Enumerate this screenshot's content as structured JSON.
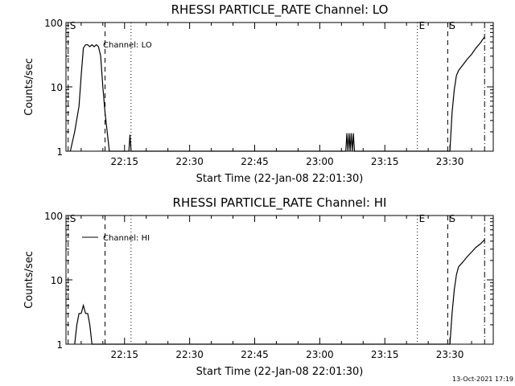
{
  "chart_data": [
    {
      "type": "line",
      "title": "RHESSI PARTICLE_RATE Channel: LO",
      "xlabel": "Start Time (22-Jan-08 22:01:30)",
      "ylabel": "Counts/sec",
      "yscale": "log",
      "ylim": [
        1,
        100
      ],
      "xlim": [
        "22:01:30",
        "23:40:00"
      ],
      "ytick_labels": [
        "1",
        "10",
        "100"
      ],
      "xtick_labels": [
        "22:15",
        "22:30",
        "22:45",
        "23:00",
        "23:15",
        "23:30"
      ],
      "legend": {
        "entry": "Channel: LO",
        "marker": "none",
        "placement": "top-left"
      },
      "event_markers": [
        {
          "time": "22:02:00",
          "style": "dashed",
          "label": "S"
        },
        {
          "time": "22:10:30",
          "style": "dashed",
          "label": ""
        },
        {
          "time": "22:16:30",
          "style": "dotted",
          "label": ""
        },
        {
          "time": "23:22:30",
          "style": "dotted",
          "label": "E"
        },
        {
          "time": "23:29:30",
          "style": "dashed",
          "label": "S"
        },
        {
          "time": "23:38:00",
          "style": "dashdot",
          "label": ""
        }
      ],
      "series": [
        {
          "x": [
            "22:02:30",
            "22:03:30",
            "22:04:30",
            "22:05:00",
            "22:05:30",
            "22:06:00",
            "22:06:30",
            "22:07:00",
            "22:07:30",
            "22:08:00",
            "22:08:30",
            "22:09:00",
            "22:09:30",
            "22:10:00",
            "22:10:30",
            "22:11:00",
            "22:11:30",
            "22:16:00",
            "22:16:15",
            "22:16:30",
            "23:06:00",
            "23:06:15",
            "23:06:30",
            "23:06:45",
            "23:07:00",
            "23:07:15",
            "23:07:30",
            "23:07:45",
            "23:08:00",
            "23:30:00",
            "23:30:30",
            "23:31:00",
            "23:31:30",
            "23:32:00",
            "23:33:00",
            "23:34:00",
            "23:35:00",
            "23:36:00",
            "23:37:00",
            "23:38:00"
          ],
          "y": [
            1,
            2,
            5,
            15,
            40,
            45,
            45,
            42,
            45,
            42,
            45,
            42,
            30,
            10,
            4,
            2,
            1,
            1,
            1.8,
            1,
            1,
            1.9,
            1,
            1.9,
            1,
            1.9,
            1,
            1.9,
            1,
            1,
            4,
            9,
            15,
            18,
            22,
            27,
            32,
            40,
            48,
            60
          ]
        }
      ]
    },
    {
      "type": "line",
      "title": "RHESSI PARTICLE_RATE Channel: HI",
      "xlabel": "Start Time (22-Jan-08 22:01:30)",
      "ylabel": "Counts/sec",
      "yscale": "log",
      "ylim": [
        1,
        100
      ],
      "xlim": [
        "22:01:30",
        "23:40:00"
      ],
      "ytick_labels": [
        "1",
        "10",
        "100"
      ],
      "xtick_labels": [
        "22:15",
        "22:30",
        "22:45",
        "23:00",
        "23:15",
        "23:30"
      ],
      "legend": {
        "entry": "Channel: HI",
        "marker": "line",
        "placement": "top-left"
      },
      "event_markers": [
        {
          "time": "22:02:00",
          "style": "dashed",
          "label": "S"
        },
        {
          "time": "22:10:30",
          "style": "dashed",
          "label": ""
        },
        {
          "time": "22:16:30",
          "style": "dotted",
          "label": ""
        },
        {
          "time": "23:22:30",
          "style": "dotted",
          "label": "E"
        },
        {
          "time": "23:29:30",
          "style": "dashed",
          "label": "S"
        },
        {
          "time": "23:38:00",
          "style": "dashdot",
          "label": ""
        }
      ],
      "series": [
        {
          "x": [
            "22:03:30",
            "22:04:00",
            "22:04:30",
            "22:05:00",
            "22:05:30",
            "22:06:00",
            "22:06:30",
            "22:07:00",
            "22:07:30",
            "23:30:00",
            "23:30:30",
            "23:31:00",
            "23:31:30",
            "23:32:00",
            "23:33:00",
            "23:34:00",
            "23:35:00",
            "23:36:00",
            "23:37:00",
            "23:38:00"
          ],
          "y": [
            1,
            2,
            3,
            3,
            4,
            3,
            3,
            2,
            1,
            1,
            3,
            7,
            12,
            16,
            19,
            23,
            27,
            32,
            36,
            42
          ]
        }
      ]
    }
  ],
  "footer": {
    "timestamp": "13-Oct-2021 17:19"
  }
}
